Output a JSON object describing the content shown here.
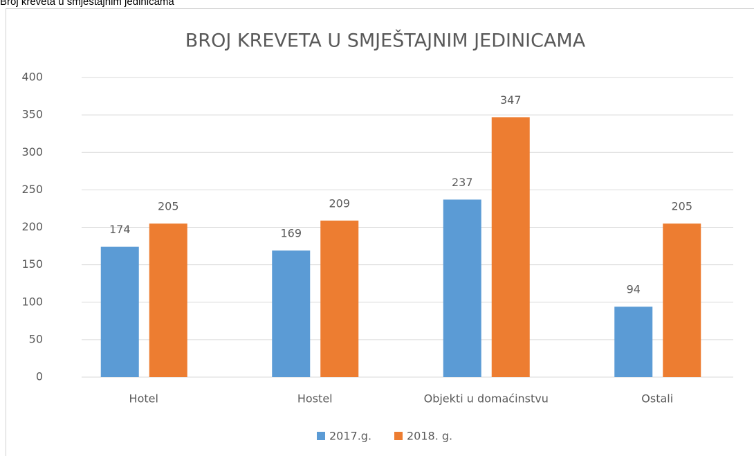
{
  "caption": "Broj kreveta u smještajnim jedinicama",
  "chart_data": {
    "type": "bar",
    "title": "BROJ KREVETA U SMJEŠTAJNIM JEDINICAMA",
    "categories": [
      "Hotel",
      "Hostel",
      "Objekti u domaćinstvu",
      "Ostali"
    ],
    "series": [
      {
        "name": "2017.g.",
        "color": "#5b9bd5",
        "values": [
          174,
          169,
          237,
          94
        ]
      },
      {
        "name": "2018. g.",
        "color": "#ed7d31",
        "values": [
          205,
          209,
          347,
          205
        ]
      }
    ],
    "ylim": [
      0,
      400
    ],
    "yticks": [
      0,
      50,
      100,
      150,
      200,
      250,
      300,
      350,
      400
    ],
    "grid": true,
    "legend": "bottom"
  }
}
